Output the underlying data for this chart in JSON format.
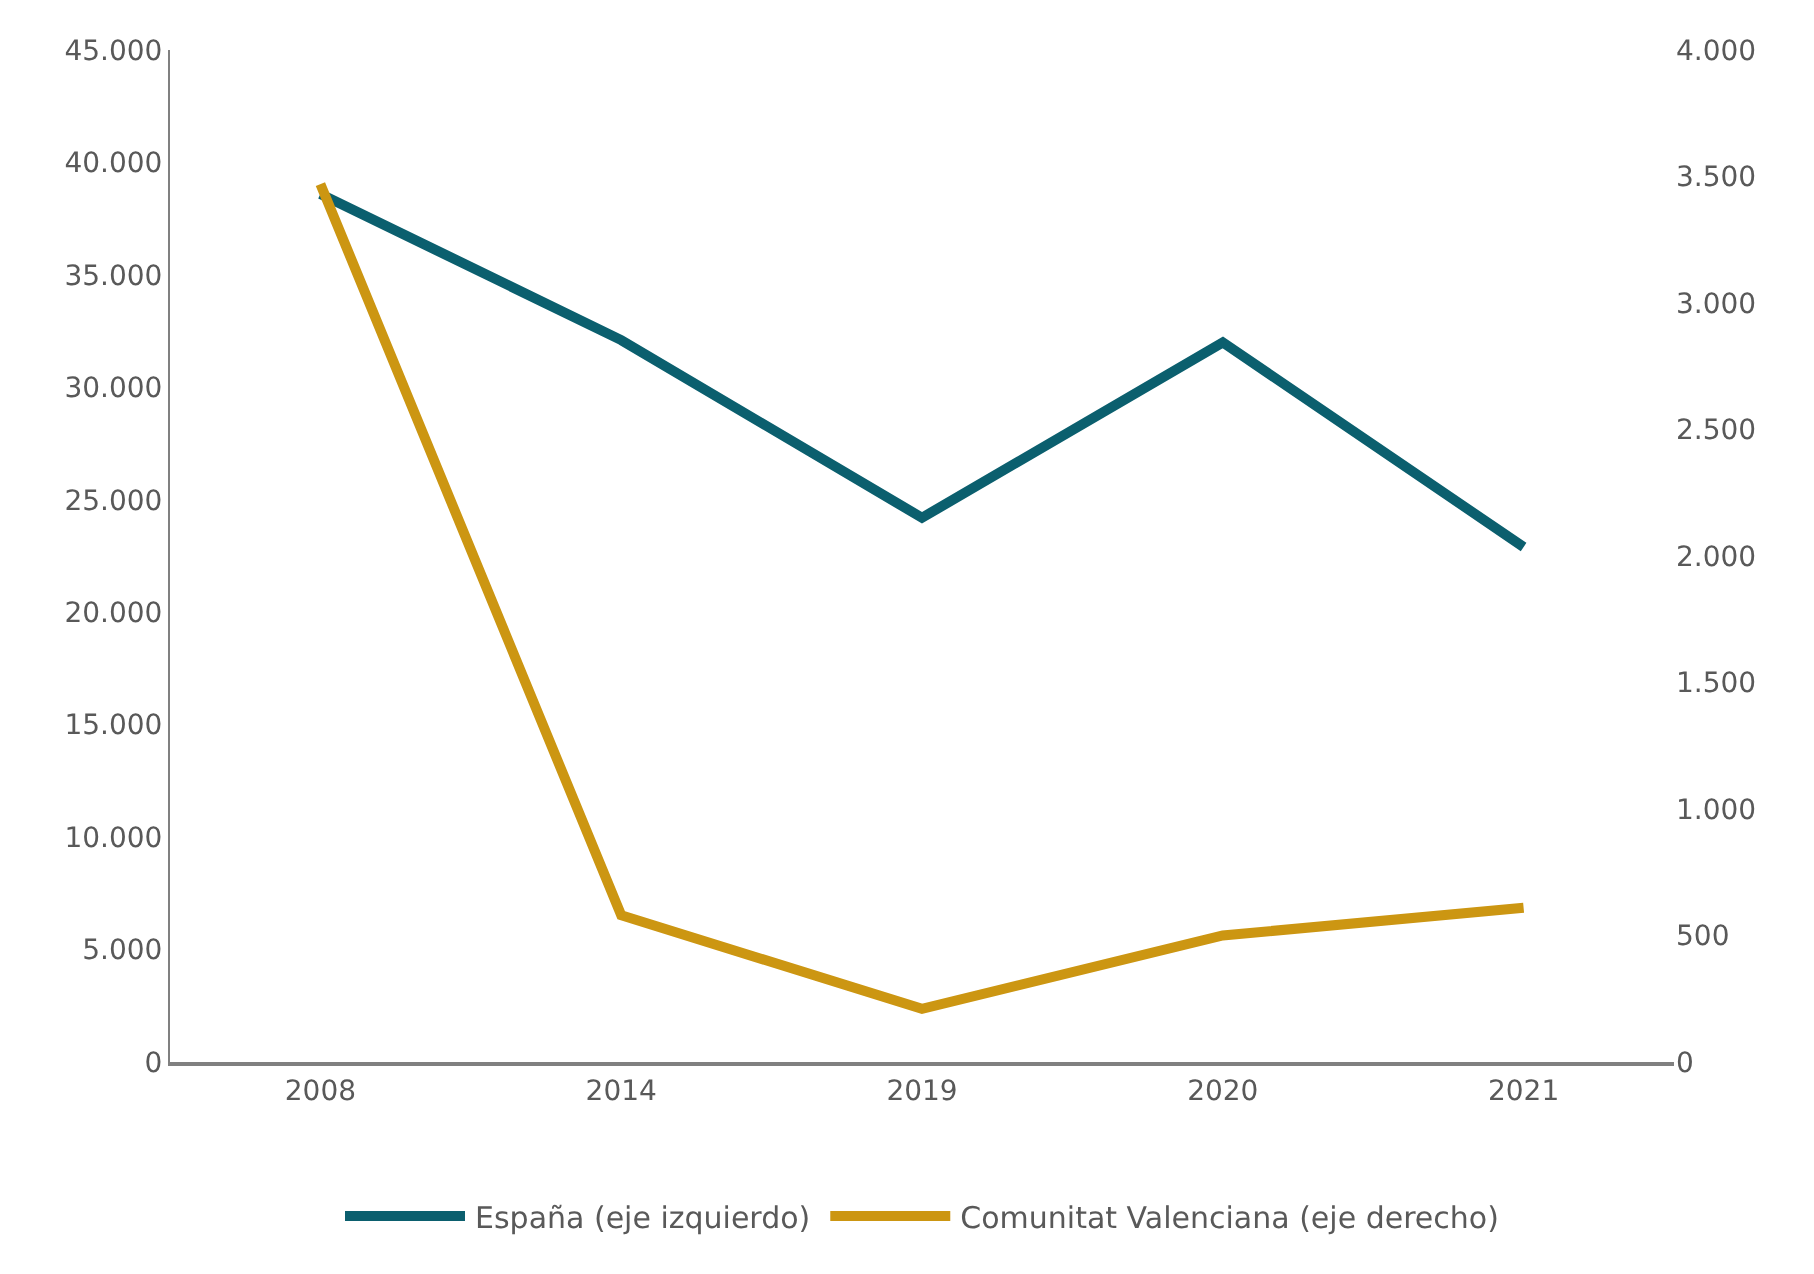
{
  "chart_data": {
    "type": "line",
    "categories": [
      "2008",
      "2014",
      "2019",
      "2020",
      "2021"
    ],
    "series": [
      {
        "name": "España (eje izquierdo)",
        "color": "#0b5f6e",
        "values": [
          38600,
          32100,
          24200,
          32000,
          22900
        ]
      },
      {
        "name": "Comunitat Valenciana (eje derecho)",
        "color": "#cc9612",
        "axis": "y2",
        "values": [
          3470,
          580,
          210,
          500,
          610
        ]
      }
    ],
    "ylim": [
      0,
      45000
    ],
    "yticks": [
      {
        "value": 0,
        "label": "0"
      },
      {
        "value": 5000,
        "label": "5.000"
      },
      {
        "value": 10000,
        "label": "10.000"
      },
      {
        "value": 15000,
        "label": "15.000"
      },
      {
        "value": 20000,
        "label": "20.000"
      },
      {
        "value": 25000,
        "label": "25.000"
      },
      {
        "value": 30000,
        "label": "30.000"
      },
      {
        "value": 35000,
        "label": "35.000"
      },
      {
        "value": 40000,
        "label": "40.000"
      },
      {
        "value": 45000,
        "label": "45.000"
      }
    ],
    "y2lim": [
      0,
      4000
    ],
    "y2ticks": [
      {
        "value": 0,
        "label": "0"
      },
      {
        "value": 500,
        "label": "500"
      },
      {
        "value": 1000,
        "label": "1.000"
      },
      {
        "value": 1500,
        "label": "1.500"
      },
      {
        "value": 2000,
        "label": "2.000"
      },
      {
        "value": 2500,
        "label": "2.500"
      },
      {
        "value": 3000,
        "label": "3.000"
      },
      {
        "value": 3500,
        "label": "3.500"
      },
      {
        "value": 4000,
        "label": "4.000"
      }
    ],
    "legend": "bottom",
    "marker": "none",
    "line_style": "solid"
  }
}
